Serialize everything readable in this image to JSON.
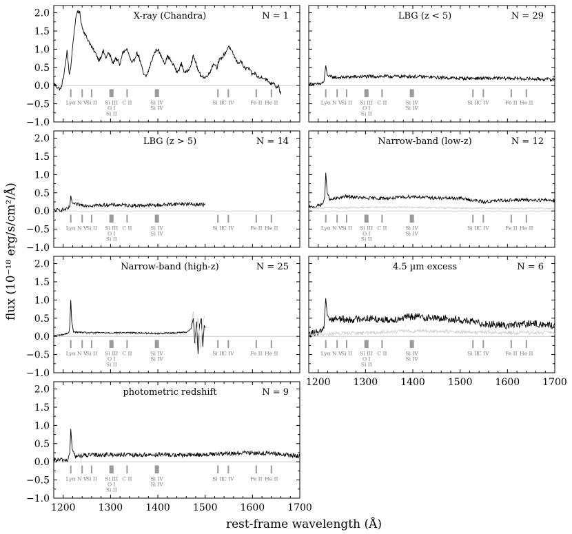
{
  "figure": {
    "xlabel": "rest-frame wavelength (Å)",
    "ylabel": "flux (10⁻¹⁸ erg/s/cm²/Å)",
    "xlim": [
      1180,
      1700
    ],
    "ylim": [
      -1.0,
      2.2
    ],
    "xticks": [
      1200,
      1300,
      1400,
      1500,
      1600,
      1700
    ],
    "yticks": [
      -1.0,
      -0.5,
      0.0,
      0.5,
      1.0,
      1.5,
      2.0
    ],
    "xtick_labels": [
      "1200",
      "1300",
      "1400",
      "1500",
      "1600",
      "1700"
    ],
    "ytick_labels": [
      "−1.0",
      "−0.5",
      "0.0",
      "0.5",
      "1.0",
      "1.5",
      "2.0"
    ]
  },
  "spectral_lines": [
    {
      "label": "Lyα",
      "wavelength": 1216,
      "marker_width": 1
    },
    {
      "label": "N V",
      "wavelength": 1240,
      "marker_width": 1
    },
    {
      "label": "Si II",
      "wavelength": 1260,
      "marker_width": 1
    },
    {
      "label": "Si III\nO I\nSi II",
      "wavelength": 1302,
      "marker_width": 3
    },
    {
      "label": "C II",
      "wavelength": 1335,
      "marker_width": 1
    },
    {
      "label": "Si IV\nSi IV",
      "wavelength": 1398,
      "marker_width": 3
    },
    {
      "label": "Si II",
      "wavelength": 1527,
      "marker_width": 1
    },
    {
      "label": "C IV",
      "wavelength": 1549,
      "marker_width": 1
    },
    {
      "label": "Fe II",
      "wavelength": 1608,
      "marker_width": 1
    },
    {
      "label": "He II",
      "wavelength": 1640,
      "marker_width": 1
    }
  ],
  "colors": {
    "spectrum": "#000000",
    "error_spectrum": "#d0d0d0",
    "line_markers": "#9a9a9a",
    "zero_line": "#cccccc"
  },
  "chart_data": [
    {
      "type": "line",
      "title": "X-ray (Chandra)",
      "n_label": "N = 1",
      "x_range": [
        1180,
        1660
      ],
      "series": [
        {
          "values": [
            [
              1180,
              0.05
            ],
            [
              1188,
              -0.05
            ],
            [
              1195,
              -0.1
            ],
            [
              1200,
              0.2
            ],
            [
              1205,
              0.6
            ],
            [
              1208,
              0.95
            ],
            [
              1210,
              0.7
            ],
            [
              1213,
              0.3
            ],
            [
              1216,
              0.5
            ],
            [
              1220,
              1.1
            ],
            [
              1225,
              1.7
            ],
            [
              1230,
              2.05
            ],
            [
              1235,
              2.0
            ],
            [
              1240,
              1.6
            ],
            [
              1245,
              1.45
            ],
            [
              1250,
              1.3
            ],
            [
              1255,
              1.2
            ],
            [
              1260,
              1.05
            ],
            [
              1265,
              0.95
            ],
            [
              1270,
              0.85
            ],
            [
              1275,
              0.7
            ],
            [
              1280,
              0.8
            ],
            [
              1285,
              0.95
            ],
            [
              1290,
              0.75
            ],
            [
              1295,
              0.9
            ],
            [
              1300,
              0.8
            ],
            [
              1305,
              0.6
            ],
            [
              1310,
              0.75
            ],
            [
              1315,
              0.7
            ],
            [
              1320,
              0.55
            ],
            [
              1325,
              0.9
            ],
            [
              1330,
              0.95
            ],
            [
              1335,
              1.0
            ],
            [
              1340,
              0.8
            ],
            [
              1345,
              0.6
            ],
            [
              1350,
              0.7
            ],
            [
              1355,
              0.9
            ],
            [
              1360,
              0.8
            ],
            [
              1365,
              0.55
            ],
            [
              1370,
              0.3
            ],
            [
              1375,
              0.25
            ],
            [
              1380,
              0.4
            ],
            [
              1385,
              0.6
            ],
            [
              1390,
              0.8
            ],
            [
              1395,
              0.95
            ],
            [
              1400,
              1.0
            ],
            [
              1405,
              0.85
            ],
            [
              1410,
              0.75
            ],
            [
              1415,
              0.6
            ],
            [
              1420,
              0.8
            ],
            [
              1425,
              0.75
            ],
            [
              1430,
              0.6
            ],
            [
              1435,
              0.55
            ],
            [
              1440,
              0.35
            ],
            [
              1445,
              0.45
            ],
            [
              1450,
              0.6
            ],
            [
              1455,
              0.4
            ],
            [
              1460,
              0.35
            ],
            [
              1465,
              0.45
            ],
            [
              1470,
              0.6
            ],
            [
              1475,
              0.8
            ],
            [
              1480,
              0.65
            ],
            [
              1485,
              0.4
            ],
            [
              1490,
              0.3
            ],
            [
              1495,
              0.25
            ],
            [
              1500,
              0.2
            ],
            [
              1505,
              0.3
            ],
            [
              1510,
              0.35
            ],
            [
              1515,
              0.55
            ],
            [
              1520,
              0.6
            ],
            [
              1525,
              0.5
            ],
            [
              1530,
              0.7
            ],
            [
              1535,
              0.75
            ],
            [
              1540,
              0.85
            ],
            [
              1545,
              0.95
            ],
            [
              1550,
              1.1
            ],
            [
              1555,
              0.95
            ],
            [
              1560,
              0.85
            ],
            [
              1565,
              0.7
            ],
            [
              1570,
              0.6
            ],
            [
              1575,
              0.7
            ],
            [
              1580,
              0.55
            ],
            [
              1585,
              0.45
            ],
            [
              1590,
              0.5
            ],
            [
              1595,
              0.4
            ],
            [
              1600,
              0.3
            ],
            [
              1605,
              0.35
            ],
            [
              1610,
              0.25
            ],
            [
              1615,
              0.2
            ],
            [
              1620,
              0.25
            ],
            [
              1625,
              0.2
            ],
            [
              1630,
              0.15
            ],
            [
              1635,
              0.1
            ],
            [
              1640,
              0.05
            ],
            [
              1645,
              0.1
            ],
            [
              1650,
              -0.05
            ],
            [
              1655,
              0.0
            ],
            [
              1660,
              -0.25
            ]
          ]
        }
      ],
      "noise_amp": 0.05
    },
    {
      "type": "line",
      "title": "LBG (z < 5)",
      "n_label": "N = 29",
      "x_range": [
        1180,
        1700
      ],
      "series": [
        {
          "values": [
            [
              1180,
              0.05
            ],
            [
              1195,
              0.03
            ],
            [
              1205,
              0.05
            ],
            [
              1212,
              0.1
            ],
            [
              1216,
              0.55
            ],
            [
              1219,
              0.3
            ],
            [
              1222,
              0.25
            ],
            [
              1240,
              0.22
            ],
            [
              1300,
              0.25
            ],
            [
              1400,
              0.25
            ],
            [
              1500,
              0.2
            ],
            [
              1600,
              0.2
            ],
            [
              1700,
              0.17
            ]
          ]
        }
      ],
      "noise_amp": 0.045
    },
    {
      "type": "line",
      "title": "LBG (z > 5)",
      "n_label": "N = 14",
      "x_range": [
        1180,
        1500
      ],
      "series": [
        {
          "values": [
            [
              1180,
              0.02
            ],
            [
              1195,
              0.03
            ],
            [
              1210,
              0.05
            ],
            [
              1214,
              0.12
            ],
            [
              1216,
              0.42
            ],
            [
              1219,
              0.22
            ],
            [
              1225,
              0.18
            ],
            [
              1260,
              0.15
            ],
            [
              1300,
              0.17
            ],
            [
              1350,
              0.15
            ],
            [
              1400,
              0.16
            ],
            [
              1450,
              0.2
            ],
            [
              1500,
              0.17
            ]
          ]
        }
      ],
      "noise_amp": 0.05
    },
    {
      "type": "line",
      "title": "Narrow-band (low-z)",
      "n_label": "N = 12",
      "x_range": [
        1180,
        1700
      ],
      "series": [
        {
          "name": "",
          "values": [
            [
              1180,
              0.1
            ],
            [
              1195,
              0.12
            ],
            [
              1210,
              0.2
            ],
            [
              1214,
              0.4
            ],
            [
              1216,
              1.05
            ],
            [
              1219,
              0.5
            ],
            [
              1225,
              0.3
            ],
            [
              1240,
              0.35
            ],
            [
              1260,
              0.4
            ],
            [
              1300,
              0.35
            ],
            [
              1350,
              0.35
            ],
            [
              1400,
              0.4
            ],
            [
              1450,
              0.35
            ],
            [
              1500,
              0.35
            ],
            [
              1550,
              0.25
            ],
            [
              1600,
              0.3
            ],
            [
              1650,
              0.3
            ],
            [
              1700,
              0.3
            ]
          ]
        },
        {
          "name": "",
          "values": [
            [
              1180,
              0.08
            ],
            [
              1300,
              0.1
            ],
            [
              1400,
              0.1
            ],
            [
              1500,
              0.08
            ],
            [
              1600,
              0.07
            ],
            [
              1700,
              0.07
            ]
          ],
          "style": "error"
        }
      ],
      "noise_amp": 0.045
    },
    {
      "type": "line",
      "title": "Narrow-band (high-z)",
      "n_label": "N = 25",
      "x_range": [
        1180,
        1500
      ],
      "series": [
        {
          "values": [
            [
              1180,
              0.02
            ],
            [
              1200,
              0.05
            ],
            [
              1212,
              0.1
            ],
            [
              1214,
              0.3
            ],
            [
              1216,
              1.0
            ],
            [
              1218,
              0.4
            ],
            [
              1222,
              0.12
            ],
            [
              1250,
              0.1
            ],
            [
              1300,
              0.1
            ],
            [
              1350,
              0.1
            ],
            [
              1400,
              0.08
            ],
            [
              1440,
              0.1
            ],
            [
              1460,
              0.12
            ],
            [
              1470,
              0.2
            ],
            [
              1475,
              0.5
            ],
            [
              1478,
              -0.2
            ],
            [
              1482,
              0.4
            ],
            [
              1485,
              -0.5
            ],
            [
              1488,
              0.3
            ],
            [
              1492,
              0.5
            ],
            [
              1495,
              -0.3
            ],
            [
              1498,
              0.3
            ],
            [
              1500,
              0.25
            ]
          ]
        },
        {
          "values": [
            [
              1470,
              0.3
            ],
            [
              1475,
              0.7
            ],
            [
              1480,
              -0.3
            ],
            [
              1485,
              0.6
            ],
            [
              1490,
              -0.4
            ],
            [
              1495,
              0.4
            ],
            [
              1500,
              0.6
            ]
          ],
          "style": "error"
        }
      ],
      "noise_amp": 0.02
    },
    {
      "type": "line",
      "title": "4.5 µm excess",
      "n_label": "N = 6",
      "x_range": [
        1180,
        1700
      ],
      "series": [
        {
          "values": [
            [
              1180,
              0.05
            ],
            [
              1195,
              0.1
            ],
            [
              1205,
              0.15
            ],
            [
              1212,
              0.25
            ],
            [
              1216,
              1.05
            ],
            [
              1219,
              0.6
            ],
            [
              1225,
              0.45
            ],
            [
              1240,
              0.5
            ],
            [
              1260,
              0.45
            ],
            [
              1300,
              0.5
            ],
            [
              1350,
              0.45
            ],
            [
              1400,
              0.55
            ],
            [
              1450,
              0.5
            ],
            [
              1500,
              0.45
            ],
            [
              1550,
              0.35
            ],
            [
              1600,
              0.3
            ],
            [
              1650,
              0.35
            ],
            [
              1700,
              0.3
            ]
          ]
        },
        {
          "values": [
            [
              1180,
              0.05
            ],
            [
              1300,
              0.1
            ],
            [
              1400,
              0.15
            ],
            [
              1500,
              0.12
            ],
            [
              1600,
              0.1
            ],
            [
              1700,
              0.1
            ]
          ],
          "style": "error"
        }
      ],
      "noise_amp": 0.1
    },
    {
      "type": "line",
      "title": "photometric redshift",
      "n_label": "N = 9",
      "x_range": [
        1180,
        1700
      ],
      "series": [
        {
          "values": [
            [
              1180,
              0.05
            ],
            [
              1195,
              0.05
            ],
            [
              1210,
              0.05
            ],
            [
              1214,
              0.25
            ],
            [
              1216,
              0.9
            ],
            [
              1219,
              0.35
            ],
            [
              1225,
              0.15
            ],
            [
              1250,
              0.18
            ],
            [
              1300,
              0.2
            ],
            [
              1350,
              0.18
            ],
            [
              1400,
              0.2
            ],
            [
              1450,
              0.18
            ],
            [
              1500,
              0.2
            ],
            [
              1550,
              0.22
            ],
            [
              1600,
              0.25
            ],
            [
              1650,
              0.22
            ],
            [
              1700,
              0.15
            ]
          ]
        }
      ],
      "noise_amp": 0.06
    }
  ]
}
